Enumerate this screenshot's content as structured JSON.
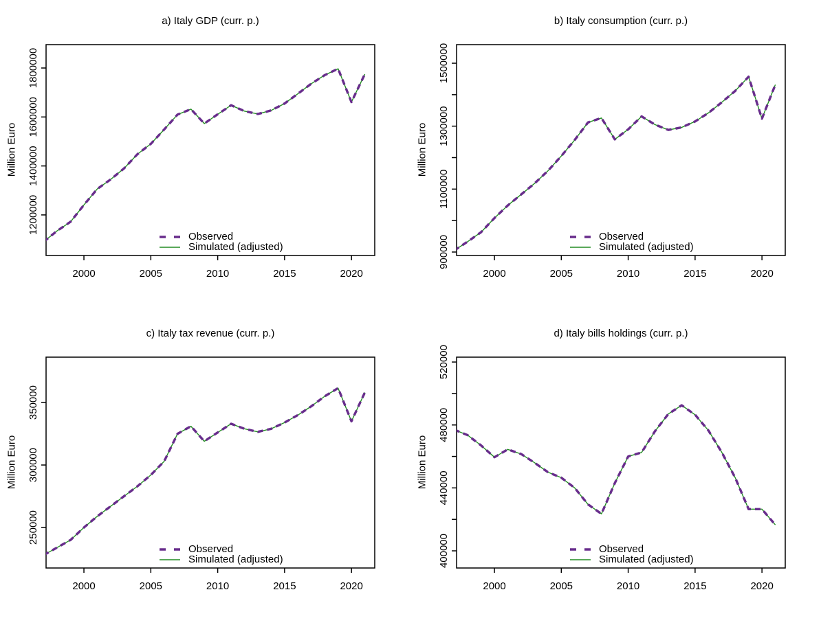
{
  "figure": {
    "background": "#ffffff",
    "axis_color": "#000000",
    "observed_color": "#682D8C",
    "simulated_color": "#228B22"
  },
  "chart_data": [
    {
      "type": "line",
      "title": "a) Italy GDP (curr. p.)",
      "ylabel": "Million Euro",
      "legend": [
        "Observed",
        "Simulated (adjusted)"
      ],
      "legend_position": "bottom-center-inside",
      "grid": false,
      "x": [
        1997,
        1998,
        1999,
        2000,
        2001,
        2002,
        2003,
        2004,
        2005,
        2006,
        2007,
        2008,
        2009,
        2010,
        2011,
        2012,
        2013,
        2014,
        2015,
        2016,
        2017,
        2018,
        2019,
        2020,
        2021
      ],
      "xlim": [
        1997.17,
        2021.74
      ],
      "ylim": [
        1034300,
        1895400
      ],
      "xticks": [
        2000,
        2005,
        2010,
        2015,
        2020
      ],
      "yticks": [
        1200000,
        1400000,
        1600000,
        1800000
      ],
      "ytick_labels": [
        "1200000",
        "1400000",
        "1600000",
        "1800000"
      ],
      "series": [
        {
          "name": "Observed",
          "color": "#682D8C",
          "style": "dashed",
          "values": [
            1091000,
            1135000,
            1172000,
            1241000,
            1306000,
            1345000,
            1390000,
            1448000,
            1490000,
            1549000,
            1610000,
            1632000,
            1573000,
            1611000,
            1648000,
            1624000,
            1612000,
            1627000,
            1655000,
            1695000,
            1736000,
            1771000,
            1797000,
            1661000,
            1775000
          ]
        },
        {
          "name": "Simulated (adjusted)",
          "color": "#228B22",
          "style": "solid",
          "values": [
            1091000,
            1135000,
            1172000,
            1241000,
            1306000,
            1345000,
            1390000,
            1448000,
            1490000,
            1549000,
            1610000,
            1632000,
            1573000,
            1611000,
            1648000,
            1624000,
            1612000,
            1627000,
            1655000,
            1695000,
            1736000,
            1771000,
            1797000,
            1661000,
            1775000
          ]
        }
      ]
    },
    {
      "type": "line",
      "title": "b) Italy consumption (curr. p.)",
      "ylabel": "Million Euro",
      "legend": [
        "Observed",
        "Simulated (adjusted)"
      ],
      "legend_position": "bottom-center-inside",
      "grid": false,
      "x": [
        1997,
        1998,
        1999,
        2000,
        2001,
        2002,
        2003,
        2004,
        2005,
        2006,
        2007,
        2008,
        2009,
        2010,
        2011,
        2012,
        2013,
        2014,
        2015,
        2016,
        2017,
        2018,
        2019,
        2020,
        2021
      ],
      "xlim": [
        1997.17,
        2021.74
      ],
      "ylim": [
        889000,
        1559000
      ],
      "xticks": [
        2000,
        2005,
        2010,
        2015,
        2020
      ],
      "yticks": [
        900000,
        1000000,
        1100000,
        1200000,
        1300000,
        1400000,
        1500000
      ],
      "ytick_labels": [
        "900000",
        "",
        "1100000",
        "",
        "1300000",
        "",
        "1500000"
      ],
      "series": [
        {
          "name": "Observed",
          "color": "#682D8C",
          "style": "dashed",
          "values": [
            905000,
            933000,
            963000,
            1008000,
            1048000,
            1083000,
            1118000,
            1158000,
            1205000,
            1256000,
            1312000,
            1326000,
            1258000,
            1290000,
            1331000,
            1305000,
            1288000,
            1296000,
            1315000,
            1342000,
            1376000,
            1412000,
            1457000,
            1324000,
            1432000
          ]
        },
        {
          "name": "Simulated (adjusted)",
          "color": "#228B22",
          "style": "solid",
          "values": [
            905000,
            933000,
            963000,
            1008000,
            1048000,
            1083000,
            1118000,
            1158000,
            1205000,
            1256000,
            1312000,
            1326000,
            1258000,
            1290000,
            1331000,
            1305000,
            1288000,
            1296000,
            1315000,
            1342000,
            1376000,
            1412000,
            1457000,
            1324000,
            1432000
          ]
        }
      ]
    },
    {
      "type": "line",
      "title": "c) Italy tax revenue (curr. p.)",
      "ylabel": "Million Euro",
      "legend": [
        "Observed",
        "Simulated (adjusted)"
      ],
      "legend_position": "bottom-center-inside",
      "grid": false,
      "x": [
        1997,
        1998,
        1999,
        2000,
        2001,
        2002,
        2003,
        2004,
        2005,
        2006,
        2007,
        2008,
        2009,
        2010,
        2011,
        2012,
        2013,
        2014,
        2015,
        2016,
        2017,
        2018,
        2019,
        2020,
        2021
      ],
      "xlim": [
        1997.17,
        2021.74
      ],
      "ylim": [
        217600,
        386300
      ],
      "xticks": [
        2000,
        2005,
        2010,
        2015,
        2020
      ],
      "yticks": [
        250000,
        300000,
        350000
      ],
      "ytick_labels": [
        "250000",
        "300000",
        "350000"
      ],
      "series": [
        {
          "name": "Observed",
          "color": "#682D8C",
          "style": "dashed",
          "values": [
            228000,
            234000,
            240000,
            250000,
            259000,
            267000,
            275000,
            283000,
            292000,
            303000,
            325000,
            331000,
            319000,
            326000,
            333000,
            329000,
            326500,
            329000,
            334000,
            340000,
            347000,
            355000,
            361500,
            335000,
            358000
          ]
        },
        {
          "name": "Simulated (adjusted)",
          "color": "#228B22",
          "style": "solid",
          "values": [
            228000,
            234000,
            240000,
            250000,
            259000,
            267000,
            275000,
            283000,
            292000,
            303000,
            325000,
            331000,
            319000,
            326000,
            333000,
            329000,
            326500,
            329000,
            334000,
            340000,
            347000,
            355000,
            361500,
            335000,
            358000
          ]
        }
      ]
    },
    {
      "type": "line",
      "title": "d) Italy bills holdings (curr. p.)",
      "ylabel": "Million Euro",
      "legend": [
        "Observed",
        "Simulated (adjusted)"
      ],
      "legend_position": "bottom-center-inside",
      "grid": false,
      "x": [
        1997,
        1998,
        1999,
        2000,
        2001,
        2002,
        2003,
        2004,
        2005,
        2006,
        2007,
        2008,
        2009,
        2010,
        2011,
        2012,
        2013,
        2014,
        2015,
        2016,
        2017,
        2018,
        2019,
        2020,
        2021
      ],
      "xlim": [
        1997.17,
        2021.74
      ],
      "ylim": [
        389100,
        523100
      ],
      "xticks": [
        2000,
        2005,
        2010,
        2015,
        2020
      ],
      "yticks": [
        400000,
        420000,
        440000,
        460000,
        480000,
        500000,
        520000
      ],
      "ytick_labels": [
        "400000",
        "",
        "440000",
        "",
        "480000",
        "",
        "520000"
      ],
      "series": [
        {
          "name": "Observed",
          "color": "#682D8C",
          "style": "dashed",
          "values": [
            477000,
            473500,
            467000,
            459500,
            464500,
            461500,
            456000,
            450000,
            446500,
            440000,
            429500,
            423500,
            443000,
            460000,
            462500,
            476000,
            487000,
            492500,
            486500,
            476500,
            462500,
            446500,
            426500,
            426500,
            416500
          ]
        },
        {
          "name": "Simulated (adjusted)",
          "color": "#228B22",
          "style": "solid",
          "values": [
            477000,
            473500,
            467000,
            459500,
            464500,
            461500,
            456000,
            450000,
            446500,
            440000,
            429500,
            423500,
            443000,
            460000,
            462500,
            476000,
            487000,
            492500,
            486500,
            476500,
            462500,
            446500,
            426500,
            426500,
            416500
          ]
        }
      ]
    }
  ]
}
